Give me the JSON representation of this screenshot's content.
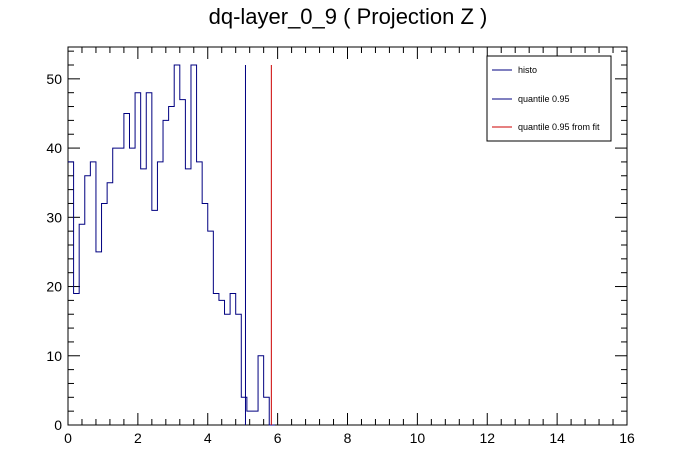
{
  "chart_data": {
    "type": "histogram",
    "title": "dq-layer_0_9 ( Projection Z )",
    "xlabel": "",
    "ylabel": "",
    "xlim": [
      0,
      16
    ],
    "ylim": [
      0,
      54.6
    ],
    "x_ticks": [
      "0",
      "2",
      "4",
      "6",
      "8",
      "10",
      "12",
      "14",
      "16"
    ],
    "y_ticks": [
      "0",
      "10",
      "20",
      "30",
      "40",
      "50"
    ],
    "bin_width": 0.16,
    "bin_start": 0,
    "grid": false,
    "legend_position": "top-right",
    "series": [
      {
        "name": "histo",
        "color": "#000080",
        "values": [
          38,
          19,
          29,
          36,
          38,
          25,
          32,
          35,
          40,
          40,
          45,
          40,
          48,
          37,
          48,
          31,
          38,
          44,
          46,
          52,
          47,
          37,
          52,
          38,
          32,
          28,
          19,
          18,
          16,
          19,
          16,
          4,
          2,
          2,
          10,
          4,
          0
        ]
      }
    ],
    "vertical_lines": [
      {
        "name": "quantile 0.95",
        "x": 5.08,
        "y_top": 52,
        "color": "#000080"
      },
      {
        "name": "quantile 0.95 from fit",
        "x": 5.82,
        "y_top": 52,
        "color": "#cc0000"
      }
    ]
  }
}
